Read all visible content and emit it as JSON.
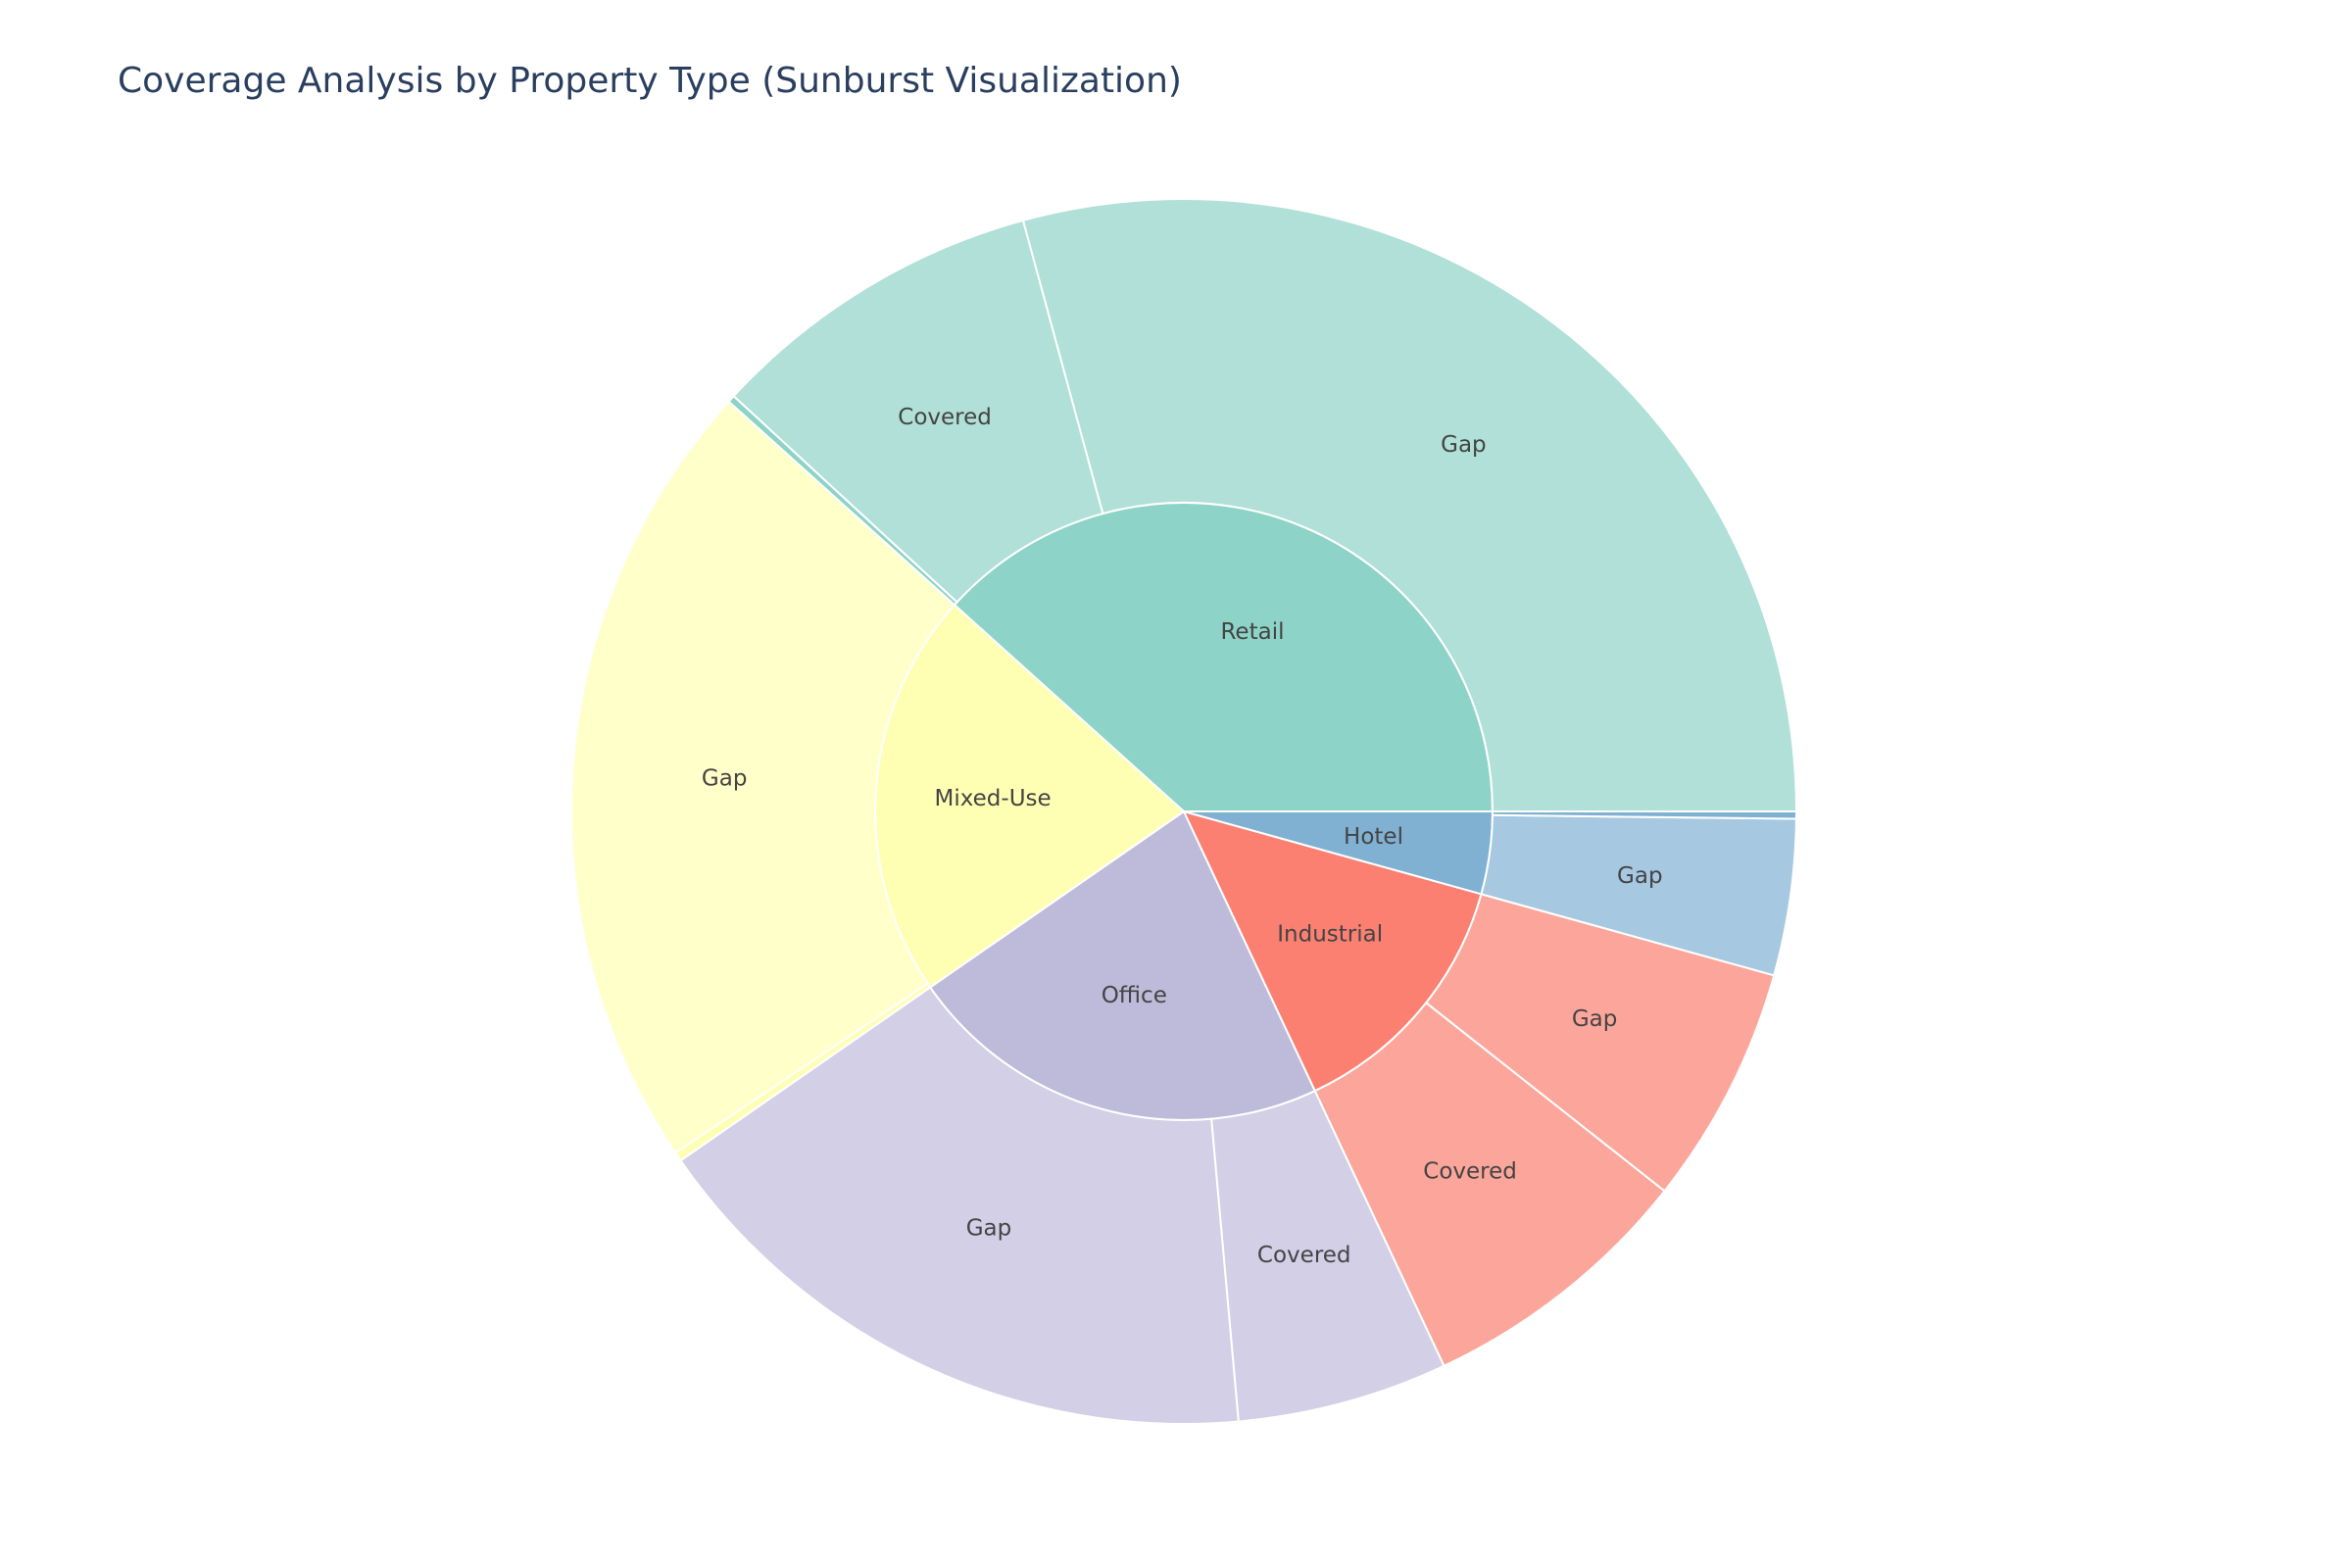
{
  "title": "Coverage Analysis by Property Type (Sunburst Visualization)",
  "chart_data": {
    "type": "sunburst",
    "title": "Coverage Analysis by Property Type (Sunburst Visualization)",
    "sort": "descending",
    "categories": [
      {
        "name": "Retail",
        "color": "#8dd3c7",
        "child_color": "#b0e0d7",
        "children": [
          {
            "name": "Gap",
            "value": 30.5,
            "label": "Gap"
          },
          {
            "name": "Covered",
            "value": 9.3,
            "label": "Covered"
          },
          {
            "name": "Overlap",
            "value": 0.2,
            "label": ""
          }
        ]
      },
      {
        "name": "Mixed-Use",
        "color": "#ffffb3",
        "child_color": "#ffffca",
        "children": [
          {
            "name": "Gap",
            "value": 22.0,
            "label": "Gap"
          },
          {
            "name": "Overlap",
            "value": 0.25,
            "label": ""
          }
        ]
      },
      {
        "name": "Office",
        "color": "#bebada",
        "child_color": "#d3cfe6",
        "children": [
          {
            "name": "Gap",
            "value": 17.5,
            "label": "Gap"
          },
          {
            "name": "Covered",
            "value": 5.8,
            "label": "Covered"
          }
        ]
      },
      {
        "name": "Industrial",
        "color": "#fb8072",
        "child_color": "#fca69b",
        "children": [
          {
            "name": "Covered",
            "value": 7.7,
            "label": "Covered"
          },
          {
            "name": "Gap",
            "value": 6.6,
            "label": "Gap"
          }
        ]
      },
      {
        "name": "Hotel",
        "color": "#80b1d3",
        "child_color": "#a6c8e0",
        "children": [
          {
            "name": "Gap",
            "value": 4.3,
            "label": "Gap"
          },
          {
            "name": "Overlap",
            "value": 0.2,
            "label": ""
          }
        ]
      }
    ]
  }
}
